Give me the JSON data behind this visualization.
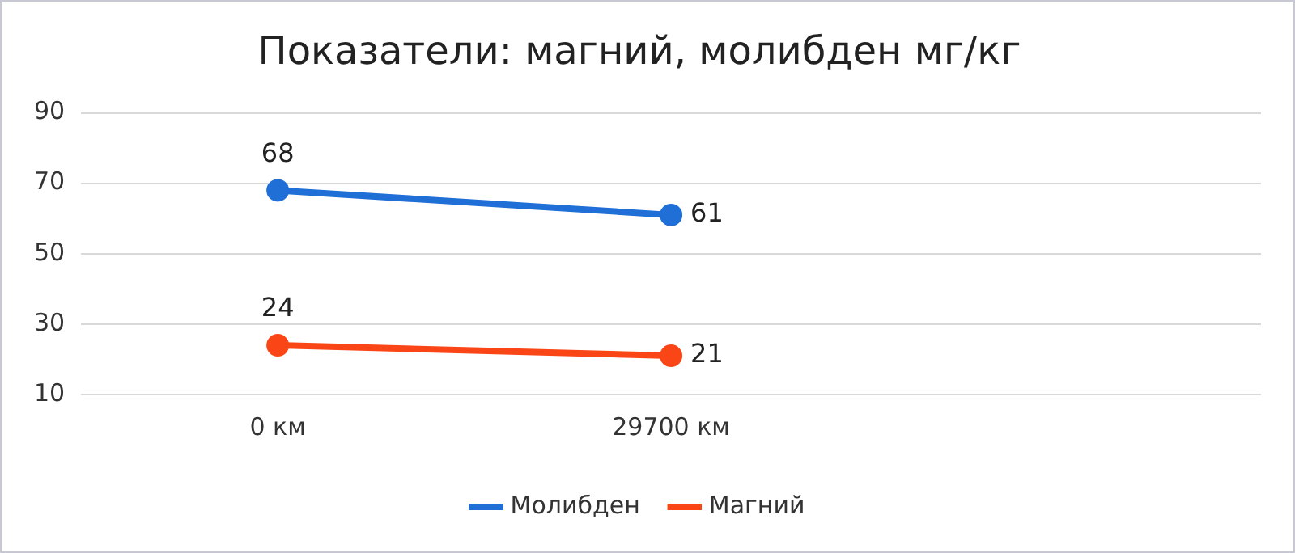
{
  "chart_data": {
    "type": "line",
    "title": "Показатели: магний, молибден мг/кг",
    "categories": [
      "0 км",
      "29700 км",
      null
    ],
    "series": [
      {
        "name": "Молибден",
        "color": "#1f6fd6",
        "values": [
          68,
          61,
          null
        ]
      },
      {
        "name": "Магний",
        "color": "#fa4616",
        "values": [
          24,
          21,
          null
        ]
      }
    ],
    "ylim": [
      10,
      90
    ],
    "yticks": [
      10,
      30,
      50,
      70,
      90
    ],
    "grid": "y",
    "legend": "bottom",
    "marker": "circle",
    "line_style": "solid",
    "data_labels": true
  }
}
